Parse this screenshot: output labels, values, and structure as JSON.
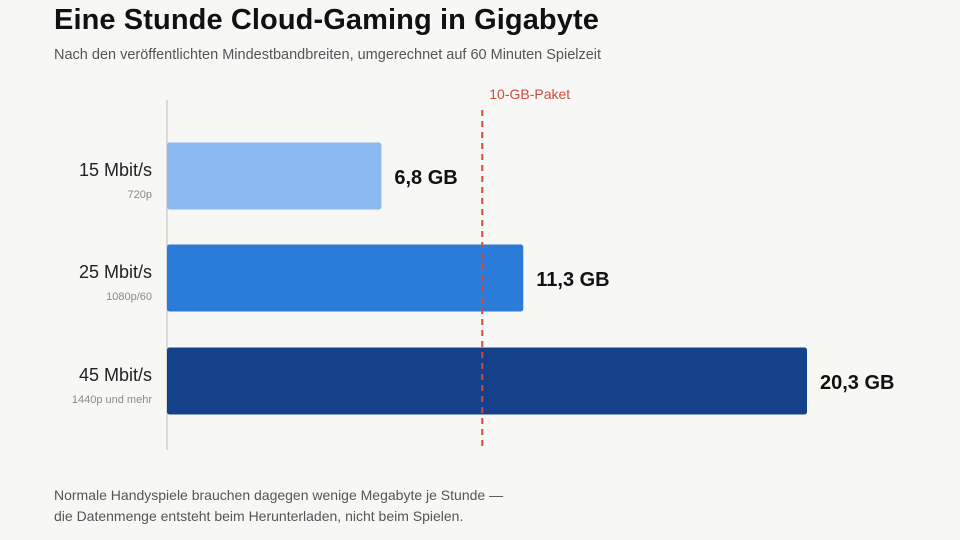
{
  "title": "Eine Stunde Cloud-Gaming in Gigabyte",
  "subtitle": "Nach den veröffentlichten Mindestbandbreiten, umgerechnet auf 60 Minuten Spielzeit",
  "footnote": {
    "line1": "Normale Handyspiele brauchen dagegen wenige Megabyte je Stunde —",
    "line2": "die Datenmenge entsteht beim Herunterladen, nicht beim Spielen."
  },
  "chart_data": {
    "type": "bar",
    "orientation": "horizontal",
    "categories": [
      "15 Mbit/s",
      "25 Mbit/s",
      "45 Mbit/s"
    ],
    "sublabels": [
      "720p",
      "1080p/60",
      "1440p und mehr"
    ],
    "values": [
      6.8,
      11.3,
      20.3
    ],
    "value_labels": [
      "6,8 GB",
      "11,3 GB",
      "20,3 GB"
    ],
    "unit": "GB",
    "xlim": [
      0,
      20.3
    ],
    "grid": false,
    "colors": [
      "#8bb9f0",
      "#2b7bd8",
      "#14418a"
    ],
    "reference_line": {
      "value": 10,
      "label": "10-GB-Paket",
      "color": "#d24b3e"
    }
  }
}
